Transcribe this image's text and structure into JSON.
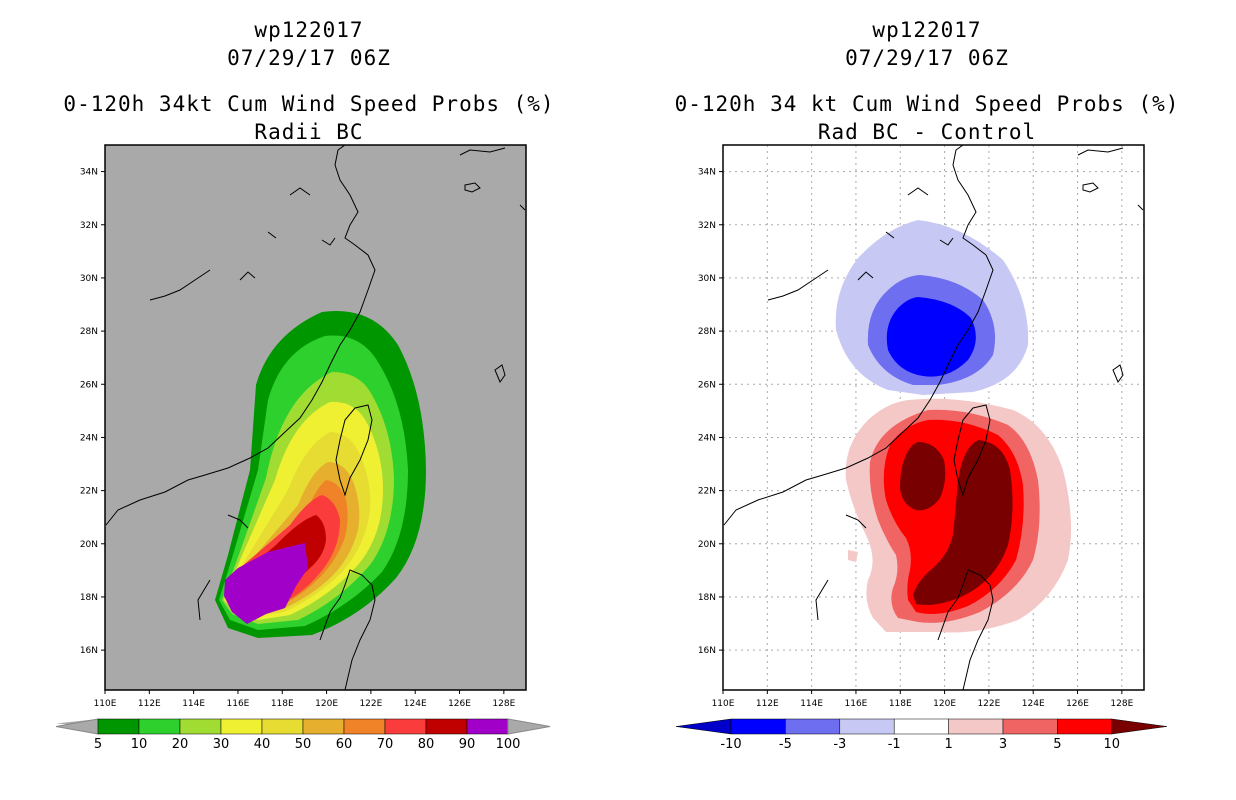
{
  "chart_data": [
    {
      "type": "heatmap",
      "storm_id": "wp122017",
      "datetime": "07/29/17 06Z",
      "title": "0-120h 34kt Cum Wind Speed Probs (%)",
      "subtitle": "Radii BC",
      "x_ticks": [
        "110E",
        "112E",
        "114E",
        "116E",
        "118E",
        "120E",
        "122E",
        "124E",
        "126E",
        "128E"
      ],
      "y_ticks": [
        "16N",
        "18N",
        "20N",
        "22N",
        "24N",
        "26N",
        "28N",
        "30N",
        "32N",
        "34N"
      ],
      "lon_range": [
        110,
        129
      ],
      "lat_range": [
        14.5,
        35
      ],
      "grid": false,
      "colorbar": {
        "labels": [
          "5",
          "10",
          "20",
          "30",
          "40",
          "50",
          "60",
          "70",
          "80",
          "90",
          "100"
        ],
        "colors": [
          "#009600",
          "#2dd02d",
          "#a0dc32",
          "#f0f032",
          "#e6dc32",
          "#e6af2d",
          "#f08228",
          "#fa3c3c",
          "#c00000",
          "#a000c8"
        ]
      }
    },
    {
      "type": "heatmap",
      "storm_id": "wp122017",
      "datetime": "07/29/17 06Z",
      "title": "0-120h 34 kt Cum Wind Speed Probs (%)",
      "subtitle": "Rad BC - Control",
      "x_ticks": [
        "110E",
        "112E",
        "114E",
        "116E",
        "118E",
        "120E",
        "122E",
        "124E",
        "126E",
        "128E"
      ],
      "y_ticks": [
        "16N",
        "18N",
        "20N",
        "22N",
        "24N",
        "26N",
        "28N",
        "30N",
        "32N",
        "34N"
      ],
      "lon_range": [
        110,
        129
      ],
      "lat_range": [
        14.5,
        35
      ],
      "grid": true,
      "colorbar": {
        "labels": [
          "-10",
          "-5",
          "-3",
          "-1",
          "1",
          "3",
          "5",
          "10"
        ],
        "colors": [
          "#0000c8",
          "#0000ff",
          "#6e6ef0",
          "#c8c8f5",
          "#ffffff",
          "#f5c8c8",
          "#f06464",
          "#ff0000",
          "#780000"
        ]
      }
    }
  ]
}
